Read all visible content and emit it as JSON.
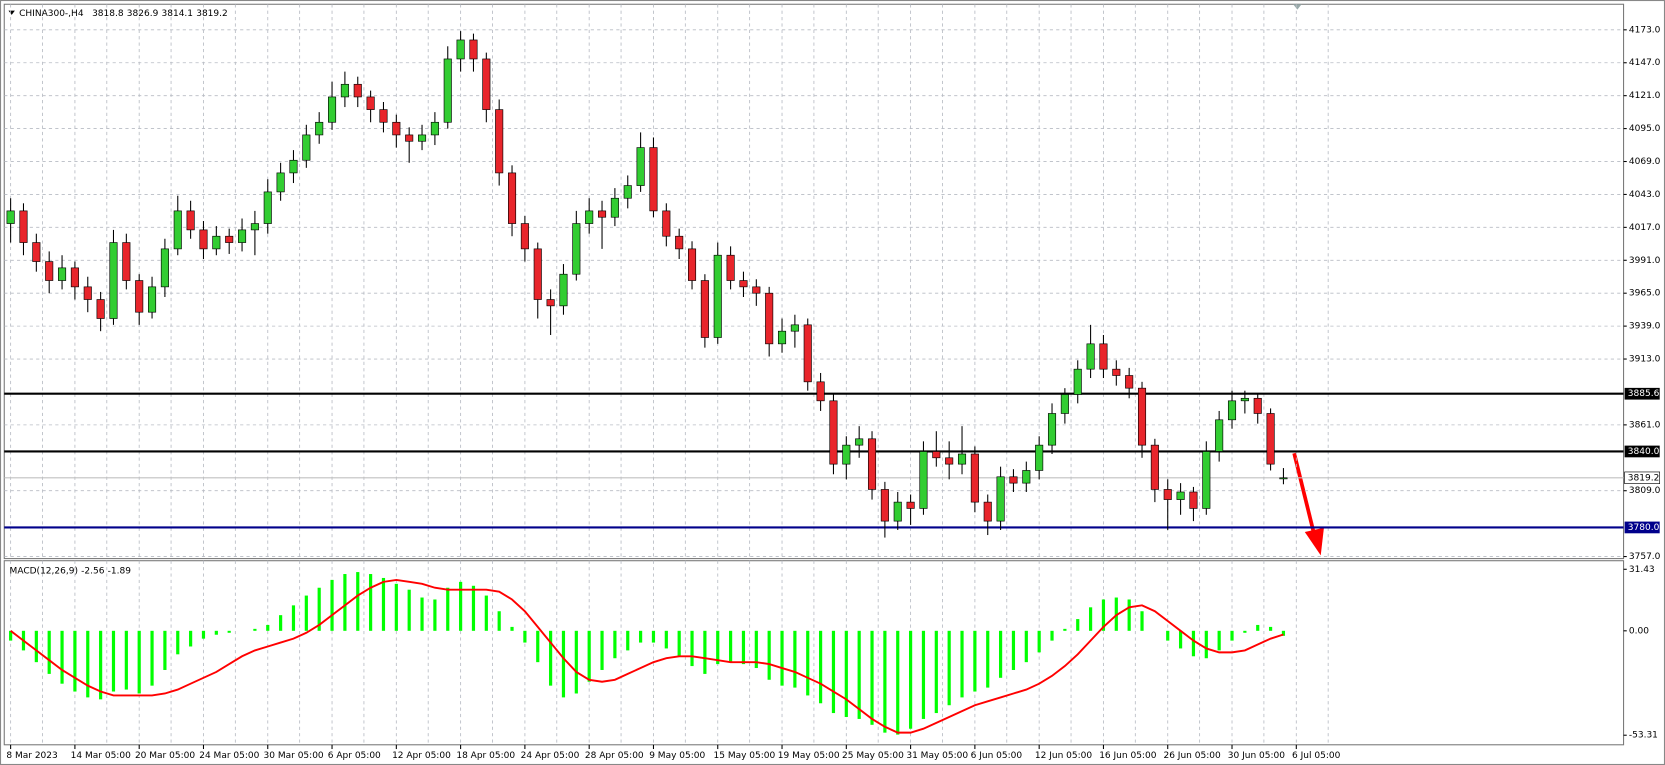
{
  "chart_data": [
    {
      "type": "candlestick",
      "title": "CHINA300-,H4",
      "ohlc": [
        [
          4020,
          4040,
          4005,
          4030
        ],
        [
          4030,
          4036,
          3995,
          4005
        ],
        [
          4005,
          4012,
          3982,
          3990
        ],
        [
          3990,
          3998,
          3965,
          3975
        ],
        [
          3975,
          3995,
          3968,
          3985
        ],
        [
          3985,
          3990,
          3960,
          3970
        ],
        [
          3970,
          3978,
          3950,
          3960
        ],
        [
          3960,
          3966,
          3935,
          3945
        ],
        [
          3945,
          4015,
          3940,
          4005
        ],
        [
          4005,
          4012,
          3968,
          3975
        ],
        [
          3975,
          3980,
          3940,
          3950
        ],
        [
          3950,
          3978,
          3945,
          3970
        ],
        [
          3970,
          4008,
          3962,
          4000
        ],
        [
          4000,
          4042,
          3995,
          4030
        ],
        [
          4030,
          4038,
          4008,
          4015
        ],
        [
          4015,
          4022,
          3992,
          4000
        ],
        [
          4000,
          4018,
          3995,
          4010
        ],
        [
          4010,
          4016,
          3996,
          4005
        ],
        [
          4005,
          4024,
          3998,
          4015
        ],
        [
          4015,
          4030,
          3995,
          4020
        ],
        [
          4020,
          4055,
          4012,
          4045
        ],
        [
          4045,
          4068,
          4038,
          4060
        ],
        [
          4060,
          4078,
          4052,
          4070
        ],
        [
          4070,
          4098,
          4064,
          4090
        ],
        [
          4090,
          4108,
          4083,
          4100
        ],
        [
          4100,
          4132,
          4094,
          4120
        ],
        [
          4120,
          4140,
          4112,
          4130
        ],
        [
          4130,
          4136,
          4112,
          4120
        ],
        [
          4120,
          4125,
          4100,
          4110
        ],
        [
          4110,
          4116,
          4092,
          4100
        ],
        [
          4100,
          4106,
          4080,
          4090
        ],
        [
          4090,
          4096,
          4068,
          4085
        ],
        [
          4085,
          4098,
          4078,
          4090
        ],
        [
          4090,
          4108,
          4082,
          4100
        ],
        [
          4100,
          4160,
          4095,
          4150
        ],
        [
          4150,
          4172,
          4140,
          4165
        ],
        [
          4165,
          4170,
          4140,
          4150
        ],
        [
          4150,
          4155,
          4100,
          4110
        ],
        [
          4110,
          4118,
          4050,
          4060
        ],
        [
          4060,
          4066,
          4010,
          4020
        ],
        [
          4020,
          4026,
          3990,
          4000
        ],
        [
          4000,
          4005,
          3945,
          3960
        ],
        [
          3960,
          3968,
          3932,
          3955
        ],
        [
          3955,
          3988,
          3948,
          3980
        ],
        [
          3980,
          4030,
          3975,
          4020
        ],
        [
          4020,
          4040,
          4012,
          4030
        ],
        [
          4030,
          4038,
          4000,
          4025
        ],
        [
          4025,
          4048,
          4018,
          4040
        ],
        [
          4040,
          4058,
          4032,
          4050
        ],
        [
          4050,
          4092,
          4045,
          4080
        ],
        [
          4080,
          4088,
          4025,
          4030
        ],
        [
          4030,
          4036,
          4002,
          4010
        ],
        [
          4010,
          4016,
          3992,
          4000
        ],
        [
          4000,
          4006,
          3968,
          3975
        ],
        [
          3975,
          3980,
          3922,
          3930
        ],
        [
          3930,
          4005,
          3925,
          3995
        ],
        [
          3995,
          4002,
          3968,
          3975
        ],
        [
          3975,
          3982,
          3962,
          3970
        ],
        [
          3970,
          3976,
          3955,
          3965
        ],
        [
          3965,
          3970,
          3915,
          3925
        ],
        [
          3925,
          3945,
          3918,
          3935
        ],
        [
          3935,
          3948,
          3922,
          3940
        ],
        [
          3940,
          3945,
          3888,
          3895
        ],
        [
          3895,
          3902,
          3872,
          3880
        ],
        [
          3880,
          3886,
          3822,
          3830
        ],
        [
          3830,
          3852,
          3818,
          3845
        ],
        [
          3845,
          3860,
          3835,
          3850
        ],
        [
          3850,
          3856,
          3802,
          3810
        ],
        [
          3810,
          3816,
          3772,
          3785
        ],
        [
          3785,
          3808,
          3778,
          3800
        ],
        [
          3800,
          3806,
          3782,
          3795
        ],
        [
          3795,
          3848,
          3790,
          3840
        ],
        [
          3840,
          3856,
          3828,
          3835
        ],
        [
          3835,
          3848,
          3818,
          3830
        ],
        [
          3830,
          3860,
          3822,
          3838
        ],
        [
          3838,
          3844,
          3792,
          3800
        ],
        [
          3800,
          3806,
          3774,
          3785
        ],
        [
          3785,
          3828,
          3778,
          3820
        ],
        [
          3820,
          3826,
          3808,
          3815
        ],
        [
          3815,
          3832,
          3808,
          3825
        ],
        [
          3825,
          3852,
          3818,
          3845
        ],
        [
          3845,
          3878,
          3838,
          3870
        ],
        [
          3870,
          3890,
          3862,
          3885
        ],
        [
          3885,
          3912,
          3878,
          3905
        ],
        [
          3905,
          3940,
          3898,
          3925
        ],
        [
          3925,
          3932,
          3898,
          3905
        ],
        [
          3905,
          3912,
          3892,
          3900
        ],
        [
          3900,
          3906,
          3882,
          3890
        ],
        [
          3890,
          3895,
          3835,
          3845
        ],
        [
          3845,
          3850,
          3800,
          3810
        ],
        [
          3810,
          3818,
          3778,
          3802
        ],
        [
          3802,
          3815,
          3790,
          3808
        ],
        [
          3808,
          3812,
          3785,
          3795
        ],
        [
          3795,
          3848,
          3790,
          3840
        ],
        [
          3840,
          3872,
          3832,
          3865
        ],
        [
          3865,
          3888,
          3858,
          3880
        ],
        [
          3880,
          3888,
          3870,
          3882
        ],
        [
          3882,
          3886,
          3862,
          3870
        ],
        [
          3870,
          3874,
          3825,
          3830
        ],
        [
          3818.8,
          3826.9,
          3814.1,
          3819.2
        ]
      ],
      "up_color": "#32cd32",
      "down_color": "#e8252b",
      "x_labels": [
        "8 Mar 2023",
        "14 Mar 05:00",
        "20 Mar 05:00",
        "24 Mar 05:00",
        "30 Mar 05:00",
        "6 Apr 05:00",
        "12 Apr 05:00",
        "18 Apr 05:00",
        "24 Apr 05:00",
        "28 Apr 05:00",
        "9 May 05:00",
        "15 May 05:00",
        "19 May 05:00",
        "25 May 05:00",
        "31 May 05:00",
        "6 Jun 05:00",
        "12 Jun 05:00",
        "16 Jun 05:00",
        "26 Jun 05:00",
        "30 Jun 05:00",
        "6 Jul 05:00"
      ],
      "ylim": [
        3755.4,
        4193.2
      ],
      "yticks": [
        {
          "value": 4173,
          "label": "4173.0"
        },
        {
          "value": 4147,
          "label": "4147.0"
        },
        {
          "value": 4121,
          "label": "4121.0"
        },
        {
          "value": 4095,
          "label": "4095.0"
        },
        {
          "value": 4069,
          "label": "4069.0"
        },
        {
          "value": 4043,
          "label": "4043.0"
        },
        {
          "value": 4017,
          "label": "4017.0"
        },
        {
          "value": 3991,
          "label": "3991.0"
        },
        {
          "value": 3965,
          "label": "3965.0"
        },
        {
          "value": 3939,
          "label": "3939.0"
        },
        {
          "value": 3913,
          "label": "3913.0"
        },
        {
          "value": 3861,
          "label": "3861.0"
        },
        {
          "value": 3809,
          "label": "3809.0"
        },
        {
          "value": 3757,
          "label": "3757.0"
        }
      ],
      "grid": true,
      "levels": [
        {
          "value": 3885.6,
          "label": "3885.6",
          "color": "#000000"
        },
        {
          "value": 3840,
          "label": "3840.0",
          "color": "#000000"
        },
        {
          "value": 3780,
          "label": "3780.0",
          "color": "#00008b"
        }
      ]
    },
    {
      "type": "macd",
      "title": "MACD(12,26,9)",
      "series": [
        {
          "color": "#00ff00",
          "values": [
            -5,
            -10,
            -16,
            -22,
            -27,
            -31,
            -34,
            -35,
            -31,
            -30,
            -32,
            -28,
            -20,
            -12,
            -8,
            -4,
            -2,
            -1,
            0,
            1,
            3,
            8,
            13,
            18,
            22,
            26,
            29,
            30,
            29,
            27,
            24,
            21,
            17,
            16,
            22,
            25,
            23,
            18,
            10,
            2,
            -6,
            -16,
            -28,
            -34,
            -32,
            -26,
            -20,
            -14,
            -10,
            -6,
            -6,
            -9,
            -13,
            -18,
            -22,
            -17,
            -16,
            -17,
            -19,
            -25,
            -28,
            -29,
            -33,
            -37,
            -42,
            -44,
            -45,
            -48,
            -52,
            -53,
            -50,
            -45,
            -42,
            -38,
            -34,
            -31,
            -29,
            -24,
            -20,
            -16,
            -11,
            -5,
            1,
            6,
            12,
            16,
            17,
            16,
            10,
            0,
            -5,
            -9,
            -13,
            -14,
            -10,
            -5,
            -1,
            3,
            2,
            -2.56
          ]
        },
        {
          "color": "#ff0000",
          "values": [
            0,
            -5,
            -10,
            -15,
            -20,
            -24,
            -28,
            -31,
            -33,
            -33,
            -33,
            -33,
            -32,
            -30,
            -27,
            -24,
            -21,
            -17,
            -13,
            -10,
            -8,
            -6,
            -4,
            -1,
            3,
            8,
            13,
            18,
            22,
            25,
            26,
            25,
            24,
            22,
            21,
            21,
            21,
            21,
            20,
            16,
            10,
            2,
            -6,
            -14,
            -21,
            -25,
            -26,
            -25,
            -22,
            -19,
            -16,
            -14,
            -13,
            -13,
            -14,
            -15,
            -16,
            -16,
            -16,
            -17,
            -19,
            -21,
            -24,
            -27,
            -31,
            -35,
            -40,
            -45,
            -49,
            -52,
            -52,
            -50,
            -47,
            -44,
            -41,
            -38,
            -36,
            -34,
            -32,
            -30,
            -27,
            -23,
            -18,
            -12,
            -5,
            2,
            8,
            12,
            13,
            10,
            5,
            0,
            -5,
            -9,
            -11,
            -11,
            -10,
            -7,
            -4,
            -1.89
          ]
        }
      ],
      "ylim": [
        -58.2,
        35.8
      ],
      "yticks": [
        31.43,
        {
          "value": 0,
          "label": "0.00"
        },
        -53.31
      ]
    }
  ]
}
